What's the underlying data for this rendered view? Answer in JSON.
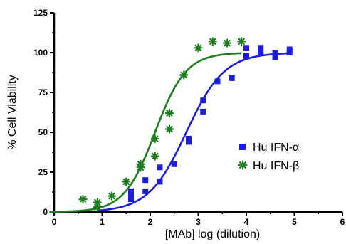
{
  "chart_data": {
    "type": "scatter",
    "xlabel": "[MAb] log (dilution)",
    "ylabel": "% Cell Viability",
    "xlim": [
      0,
      6
    ],
    "ylim": [
      0,
      125
    ],
    "x_ticks": [
      "0",
      "1",
      "2",
      "3",
      "4",
      "5",
      "6"
    ],
    "y_ticks": [
      "0",
      "25",
      "50",
      "75",
      "100",
      "125"
    ],
    "grid": false,
    "legend_position": "right",
    "series": [
      {
        "name": "Hu IFN-α",
        "color": "#1c1cdc",
        "marker": "square",
        "points": [
          [
            1.6,
            8
          ],
          [
            1.6,
            10
          ],
          [
            1.6,
            12
          ],
          [
            1.6,
            13
          ],
          [
            1.9,
            13
          ],
          [
            1.9,
            20
          ],
          [
            2.2,
            19
          ],
          [
            2.2,
            28
          ],
          [
            2.5,
            30
          ],
          [
            2.8,
            44
          ],
          [
            2.8,
            46
          ],
          [
            3.1,
            63
          ],
          [
            3.1,
            70
          ],
          [
            3.4,
            82
          ],
          [
            3.7,
            84
          ],
          [
            4.0,
            98
          ],
          [
            4.0,
            103
          ],
          [
            4.3,
            100
          ],
          [
            4.3,
            103
          ],
          [
            4.6,
            97
          ],
          [
            4.6,
            100
          ],
          [
            4.9,
            100
          ],
          [
            4.9,
            102
          ]
        ],
        "fit": {
          "bottom": 0,
          "top": 100,
          "log_ec50": 2.75,
          "hill_slope": 1.1
        }
      },
      {
        "name": "Hu IFN-β",
        "color": "#1e7d1e",
        "marker": "asterisk",
        "points": [
          [
            0.6,
            8
          ],
          [
            0.9,
            3
          ],
          [
            0.9,
            6
          ],
          [
            1.2,
            10
          ],
          [
            1.5,
            19
          ],
          [
            1.8,
            28
          ],
          [
            1.8,
            30
          ],
          [
            2.1,
            35
          ],
          [
            2.1,
            46
          ],
          [
            2.4,
            52
          ],
          [
            2.4,
            62
          ],
          [
            2.7,
            86
          ],
          [
            3.0,
            103
          ],
          [
            3.3,
            107
          ],
          [
            3.6,
            106
          ],
          [
            3.9,
            107
          ]
        ],
        "fit": {
          "bottom": 0,
          "top": 100,
          "log_ec50": 2.1,
          "hill_slope": 1.35
        }
      }
    ]
  }
}
